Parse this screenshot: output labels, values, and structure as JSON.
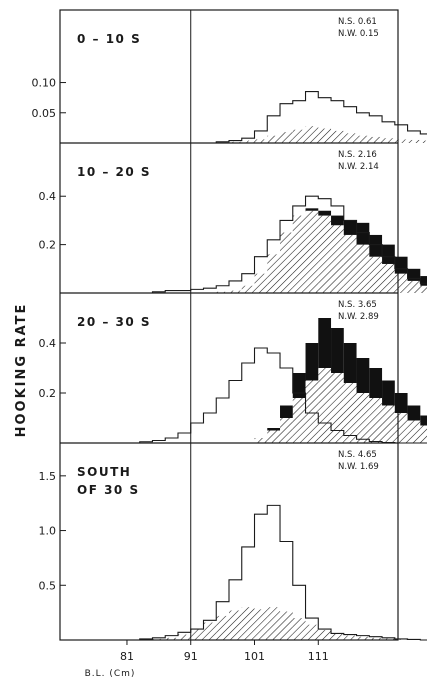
{
  "chart_data": {
    "type": "histogram-panels",
    "ylabel": "HOOKING RATE",
    "xlabel": "B.L. (Cm)",
    "x_ticks": [
      81,
      91,
      101,
      111
    ],
    "x_range": [
      70.5,
      123.5
    ],
    "bin_start": 75,
    "bin_width": 2,
    "reference_line_x": 91,
    "fill_legend": {
      "outline": "unfilled step outline",
      "hatched": "hatched area",
      "black": "solid black area"
    },
    "panels": [
      {
        "label": "0 – 10 S",
        "label_lines": [
          "0 – 10 S"
        ],
        "ns": "N.S. 0.61",
        "nw": "N.W. 0.15",
        "y_ticks": [
          "0.10",
          "0.05"
        ],
        "y_tick_values": [
          0.1,
          0.05
        ],
        "ylim": [
          0,
          0.22
        ],
        "outline": [
          0,
          0,
          0,
          0,
          0,
          0,
          0,
          0,
          0,
          0,
          0.002,
          0.004,
          0.008,
          0.02,
          0.045,
          0.065,
          0.07,
          0.085,
          0.075,
          0.07,
          0.06,
          0.05,
          0.045,
          0.035,
          0.03,
          0.02,
          0.015,
          0.01,
          0.006,
          0.004,
          0.002,
          0.001,
          0,
          0,
          0,
          0,
          0
        ],
        "hatched": [
          0,
          0,
          0,
          0,
          0,
          0,
          0,
          0,
          0,
          0,
          0,
          0.002,
          0.004,
          0.006,
          0.012,
          0.018,
          0.022,
          0.028,
          0.024,
          0.02,
          0.016,
          0.012,
          0.01,
          0.008,
          0.006,
          0.005,
          0.004,
          0.003,
          0.002,
          0.001,
          0,
          0,
          0,
          0,
          0,
          0,
          0
        ],
        "black": [
          0,
          0,
          0,
          0,
          0,
          0,
          0,
          0,
          0,
          0,
          0,
          0,
          0,
          0,
          0,
          0,
          0,
          0,
          0,
          0,
          0,
          0,
          0,
          0,
          0,
          0,
          0,
          0,
          0,
          0,
          0,
          0,
          0,
          0,
          0,
          0,
          0
        ]
      },
      {
        "label": "10 – 20 S",
        "label_lines": [
          "10 – 20 S"
        ],
        "ns": "N.S. 2.16",
        "nw": "N.W. 2.14",
        "y_ticks": [
          "0.4",
          "0.2"
        ],
        "y_tick_values": [
          0.4,
          0.2
        ],
        "ylim": [
          0,
          0.62
        ],
        "outline": [
          0,
          0,
          0,
          0,
          0,
          0.005,
          0.01,
          0.01,
          0.015,
          0.02,
          0.03,
          0.05,
          0.08,
          0.15,
          0.22,
          0.3,
          0.36,
          0.4,
          0.39,
          0.36,
          0.3,
          0.25,
          0.2,
          0.15,
          0.1,
          0.06,
          0.04,
          0.02,
          0.01,
          0.005,
          0.002,
          0,
          0,
          0,
          0,
          0,
          0
        ],
        "hatched": [
          0,
          0,
          0,
          0,
          0,
          0,
          0,
          0,
          0,
          0,
          0.005,
          0.01,
          0.03,
          0.08,
          0.16,
          0.25,
          0.32,
          0.34,
          0.32,
          0.28,
          0.24,
          0.2,
          0.15,
          0.12,
          0.08,
          0.05,
          0.03,
          0.015,
          0.005,
          0,
          0,
          0,
          0,
          0,
          0,
          0,
          0
        ],
        "black": [
          0,
          0,
          0,
          0,
          0,
          0,
          0,
          0,
          0,
          0,
          0,
          0,
          0,
          0,
          0,
          0,
          0,
          0.01,
          0.02,
          0.04,
          0.06,
          0.09,
          0.09,
          0.08,
          0.07,
          0.05,
          0.04,
          0.02,
          0.01,
          0,
          0,
          0,
          0,
          0,
          0,
          0,
          0
        ]
      },
      {
        "label": "20 – 30 S",
        "label_lines": [
          "20 – 30 S"
        ],
        "ns": "N.S. 3.65",
        "nw": "N.W. 2.89",
        "y_ticks": [
          "0.4",
          "0.2"
        ],
        "y_tick_values": [
          0.4,
          0.2
        ],
        "ylim": [
          0,
          0.6
        ],
        "outline": [
          0,
          0,
          0,
          0,
          0.005,
          0.01,
          0.02,
          0.04,
          0.08,
          0.12,
          0.18,
          0.25,
          0.32,
          0.38,
          0.36,
          0.3,
          0.2,
          0.12,
          0.08,
          0.05,
          0.03,
          0.015,
          0.006,
          0.002,
          0,
          0,
          0,
          0,
          0,
          0,
          0,
          0,
          0,
          0,
          0,
          0,
          0
        ],
        "hatched": [
          0,
          0,
          0,
          0,
          0,
          0,
          0,
          0,
          0,
          0,
          0,
          0,
          0,
          0.02,
          0.05,
          0.1,
          0.18,
          0.25,
          0.3,
          0.28,
          0.24,
          0.2,
          0.18,
          0.15,
          0.12,
          0.09,
          0.07,
          0.05,
          0.03,
          0.015,
          0.005,
          0,
          0,
          0,
          0,
          0,
          0
        ],
        "black": [
          0,
          0,
          0,
          0,
          0,
          0,
          0,
          0,
          0,
          0,
          0,
          0,
          0,
          0,
          0.01,
          0.05,
          0.1,
          0.15,
          0.2,
          0.18,
          0.16,
          0.14,
          0.12,
          0.1,
          0.08,
          0.06,
          0.04,
          0.025,
          0.015,
          0.008,
          0.003,
          0,
          0,
          0,
          0,
          0,
          0
        ]
      },
      {
        "label": "SOUTH OF 30 S",
        "label_lines": [
          "SOUTH",
          "OF 30 S"
        ],
        "ns": "N.S. 4.65",
        "nw": "N.W. 1.69",
        "y_ticks": [
          "1.5",
          "1.0",
          "0.5"
        ],
        "y_tick_values": [
          1.5,
          1.0,
          0.5
        ],
        "ylim": [
          0,
          1.8
        ],
        "outline": [
          0,
          0,
          0,
          0,
          0.01,
          0.02,
          0.04,
          0.07,
          0.1,
          0.18,
          0.35,
          0.55,
          0.85,
          1.15,
          1.23,
          0.9,
          0.5,
          0.2,
          0.1,
          0.06,
          0.05,
          0.04,
          0.03,
          0.02,
          0.01,
          0.005,
          0,
          0,
          0,
          0,
          0,
          0,
          0,
          0,
          0,
          0,
          0
        ],
        "hatched": [
          0,
          0,
          0,
          0,
          0,
          0.01,
          0.02,
          0.05,
          0.1,
          0.16,
          0.22,
          0.27,
          0.3,
          0.28,
          0.3,
          0.26,
          0.2,
          0.14,
          0.09,
          0.06,
          0.04,
          0.03,
          0.02,
          0.015,
          0.01,
          0.005,
          0,
          0,
          0,
          0,
          0,
          0,
          0,
          0,
          0,
          0,
          0
        ],
        "black": [
          0,
          0,
          0,
          0,
          0,
          0,
          0,
          0,
          0,
          0,
          0,
          0,
          0,
          0,
          0,
          0,
          0,
          0,
          0,
          0,
          0,
          0,
          0,
          0,
          0,
          0,
          0,
          0,
          0,
          0,
          0,
          0,
          0,
          0,
          0,
          0,
          0
        ]
      }
    ]
  }
}
